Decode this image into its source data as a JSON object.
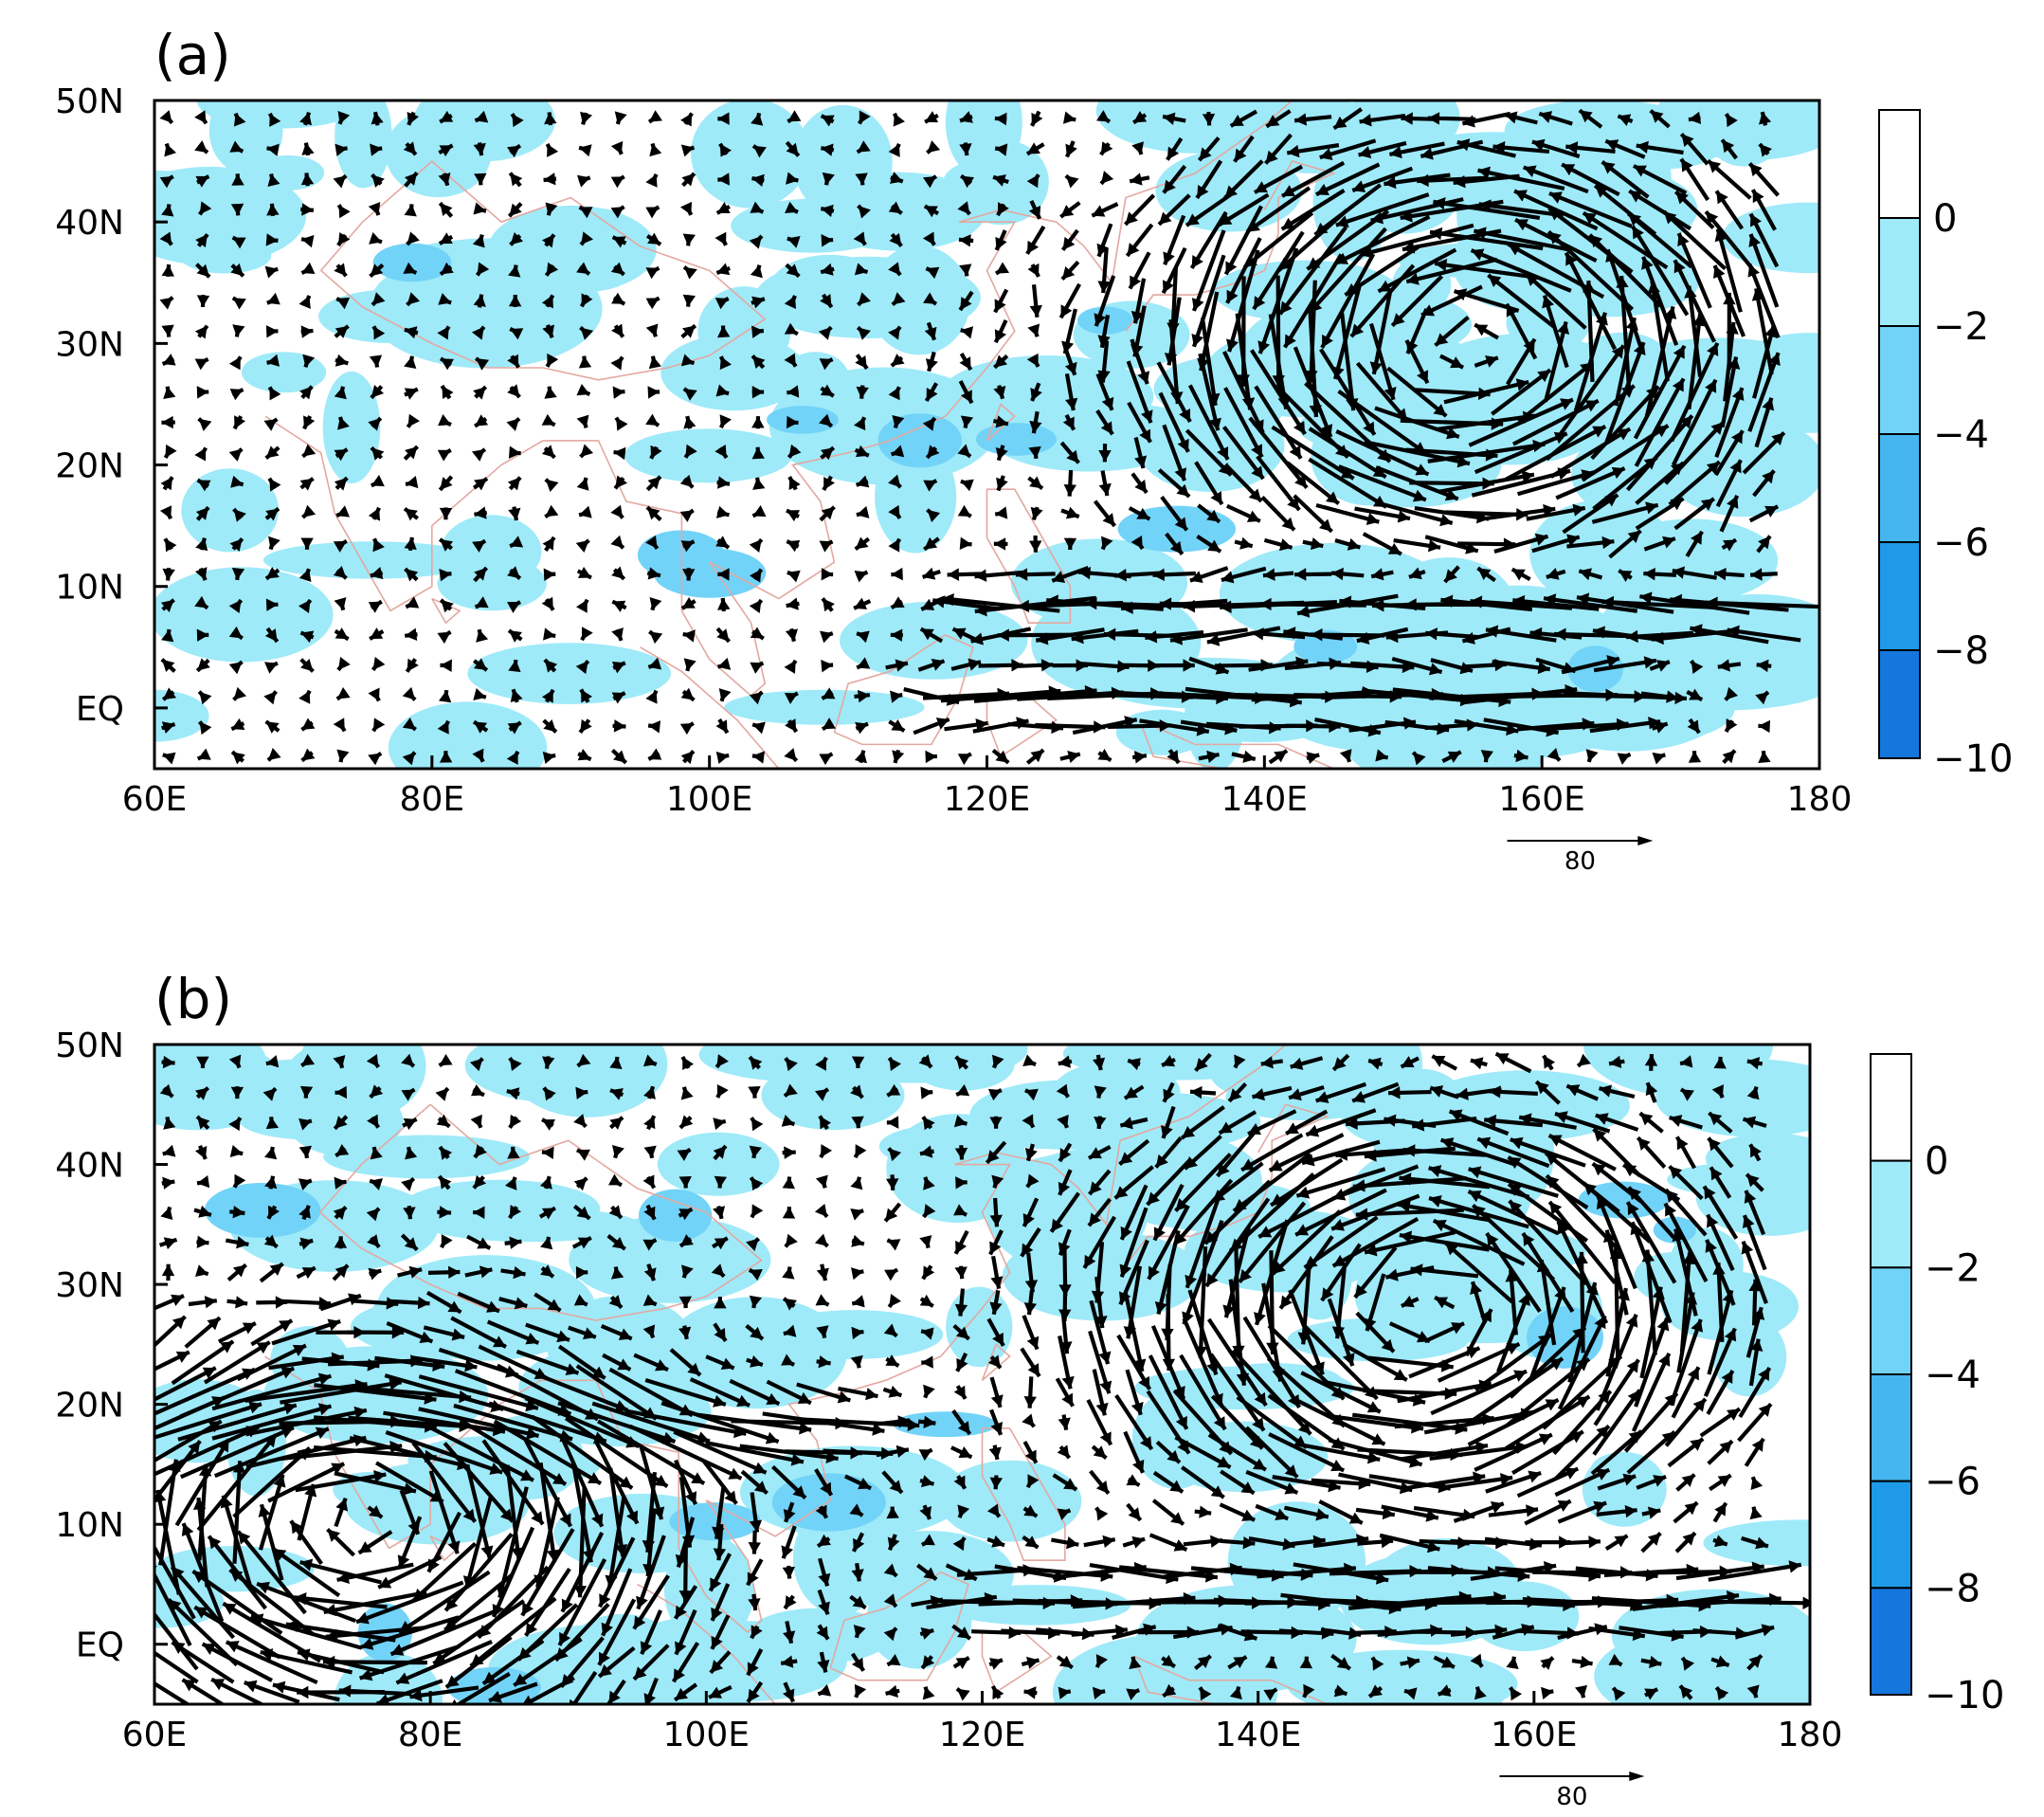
{
  "chart_data": [
    {
      "type": "vector-contour-map",
      "panel_label": "(a)",
      "lon_range": [
        60,
        180
      ],
      "lat_range": [
        -5,
        50
      ],
      "x_tick_labels": [
        "60E",
        "80E",
        "100E",
        "120E",
        "140E",
        "160E",
        "180"
      ],
      "y_tick_labels": [
        "50N",
        "40N",
        "30N",
        "20N",
        "10N",
        "EQ"
      ],
      "colorbar": {
        "levels": [
          "0",
          "−2",
          "−4",
          "−6",
          "−8",
          "−10"
        ],
        "colors": [
          "#ffffff",
          "#9eeaf9",
          "#72d3f8",
          "#45b6f0",
          "#1e9ae8",
          "#1577de"
        ]
      },
      "reference_vector": {
        "label": "80"
      },
      "flow_features": [
        {
          "type": "cyclone",
          "lon": 155,
          "lat": 30
        },
        {
          "type": "easterly-jet",
          "lat": 8,
          "lon_from": 178,
          "lon_to": 125
        },
        {
          "type": "westerly-jet",
          "lat": 1,
          "lon_from": 124,
          "lon_to": 160
        }
      ]
    },
    {
      "type": "vector-contour-map",
      "panel_label": "(b)",
      "lon_range": [
        60,
        180
      ],
      "lat_range": [
        -5,
        50
      ],
      "x_tick_labels": [
        "60E",
        "80E",
        "100E",
        "120E",
        "140E",
        "160E",
        "180"
      ],
      "y_tick_labels": [
        "50N",
        "40N",
        "30N",
        "20N",
        "10N",
        "EQ"
      ],
      "colorbar": {
        "levels": [
          "0",
          "−2",
          "−4",
          "−6",
          "−8",
          "−10"
        ],
        "colors": [
          "#ffffff",
          "#9eeaf9",
          "#72d3f8",
          "#45b6f0",
          "#1e9ae8",
          "#1577de"
        ]
      },
      "reference_vector": {
        "label": "80"
      },
      "flow_features": [
        {
          "type": "anticyclone",
          "lon": 75,
          "lat": 10
        },
        {
          "type": "cyclone",
          "lon": 152,
          "lat": 28
        },
        {
          "type": "westerly-jet",
          "lat": 4,
          "lon_from": 125,
          "lon_to": 180
        },
        {
          "type": "westerly-jet",
          "lat": 18,
          "lon_from": 64,
          "lon_to": 105
        }
      ]
    }
  ]
}
